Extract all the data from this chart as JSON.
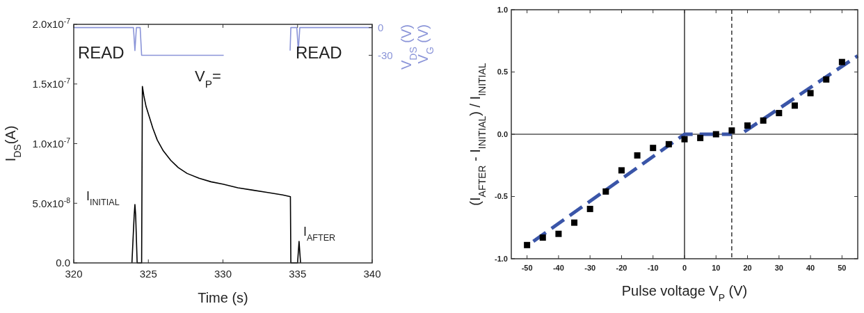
{
  "chart_data": [
    {
      "type": "line",
      "xlabel": "Time (s)",
      "ylabel": "I$_{DS}$(A)",
      "y2label": "V$_{G}$ (V)",
      "xlim": [
        320,
        340
      ],
      "ylim": [
        0,
        2e-07
      ],
      "y2lim": [
        -255,
        3.5
      ],
      "xticks": [
        320,
        325,
        330,
        335,
        340
      ],
      "yticks": [
        {
          "value": 0,
          "label": "0.0"
        },
        {
          "value": 5e-08,
          "label": "5.0x10$^{-8}$"
        },
        {
          "value": 1e-07,
          "label": "1.0x10$^{-7}$"
        },
        {
          "value": 1.5e-07,
          "label": "1.5x10$^{-7}$"
        },
        {
          "value": 2e-07,
          "label": "2.0x10$^{-7}$"
        }
      ],
      "y2ticks": [
        0,
        -30
      ],
      "grid": false,
      "series": [
        {
          "color": "#000000",
          "x": [
            323.9,
            324.05,
            324.1,
            324.15,
            324.25,
            324.55,
            324.6,
            324.7,
            324.85,
            325.05,
            325.3,
            325.6,
            326.0,
            326.5,
            327.0,
            327.6,
            328.4,
            329.2,
            330.0,
            331.0,
            332.0,
            333.0,
            334.0,
            334.52,
            334.55,
            335.0,
            335.1,
            335.2
          ],
          "values": [
            0,
            4e-08,
            4.9e-08,
            4e-08,
            0,
            0,
            1.48e-07,
            1.4e-07,
            1.31e-07,
            1.23e-07,
            1.13e-07,
            1.03e-07,
            9.4e-08,
            8.6e-08,
            8e-08,
            7.5e-08,
            7.1e-08,
            6.8e-08,
            6.6e-08,
            6.3e-08,
            6.1e-08,
            5.9e-08,
            5.7e-08,
            5.55e-08,
            0,
            0,
            1.8e-08,
            0
          ]
        },
        {
          "color": "#8a94d8",
          "axis": "y2",
          "x": [
            320,
            324.0,
            324.1,
            324.2,
            324.45,
            324.55,
            330.05,
            332,
            334.5,
            334.55,
            334.95,
            335.05,
            335.15,
            340
          ],
          "values": [
            0,
            0,
            -25,
            0,
            0,
            -30,
            -30,
            null,
            -25,
            0,
            0,
            -25,
            0,
            0
          ]
        }
      ],
      "annotations": [
        "READ",
        "READ",
        "V$_{P}$=",
        {
          "text": "I$_{INITIAL}$",
          "x": 324.1,
          "y": 4.9e-08
        },
        {
          "text": "I$_{AFTER}$",
          "x": 335.1,
          "y": 1.8e-08
        },
        "V$_{DS}$ (V)"
      ]
    },
    {
      "type": "scatter",
      "xlabel": "Pulse voltage V$_{P}$ (V)",
      "ylabel": "(I$_{AFTER}$ - I$_{INITIAL}$) / I$_{INITIAL}$",
      "xlim": [
        -55,
        55
      ],
      "ylim": [
        -1,
        1
      ],
      "xticks": [
        -50,
        -40,
        -30,
        -20,
        -10,
        0,
        10,
        20,
        30,
        40,
        50
      ],
      "yticks": [
        {
          "value": -1,
          "label": "-1.0"
        },
        {
          "value": -0.5,
          "label": "-0.5"
        },
        {
          "value": 0,
          "label": "0.0"
        },
        {
          "value": 0.5,
          "label": "0.5"
        },
        {
          "value": 1,
          "label": "1.0"
        }
      ],
      "grid": false,
      "x": [
        -50,
        -45,
        -40,
        -35,
        -30,
        -25,
        -20,
        -15,
        -10,
        -5,
        0,
        5,
        10,
        15,
        20,
        25,
        30,
        35,
        40,
        45,
        50
      ],
      "series": [
        {
          "color": "#000000",
          "marker": "square",
          "values": [
            -0.89,
            -0.83,
            -0.8,
            -0.71,
            -0.6,
            -0.46,
            -0.29,
            -0.17,
            -0.11,
            -0.08,
            -0.04,
            -0.03,
            0.0,
            0.03,
            0.07,
            0.11,
            0.17,
            0.23,
            0.33,
            0.44,
            0.58
          ]
        },
        {
          "type": "line",
          "color": "#3a55a8",
          "line_style": "dashed",
          "x": [
            -48,
            0,
            15
          ],
          "values": [
            -0.86,
            0,
            0
          ]
        },
        {
          "type": "line",
          "color": "#3a55a8",
          "line_style": "dashed",
          "x": [
            19,
            55
          ],
          "values": [
            0.02,
            0.63
          ]
        }
      ],
      "ref_lines": [
        {
          "axis": "x",
          "value": 0,
          "color": "#000000"
        },
        {
          "axis": "x",
          "value": 15,
          "color": "#000000",
          "line_style": "dashed"
        },
        {
          "axis": "y",
          "value": 0,
          "color": "#000000"
        }
      ]
    }
  ]
}
